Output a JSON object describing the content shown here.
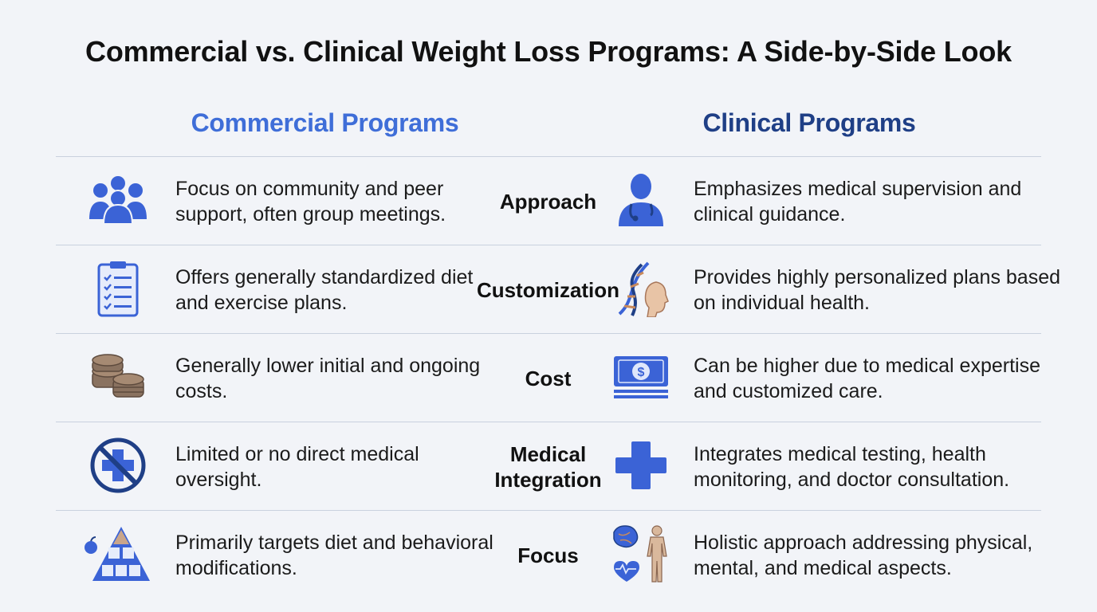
{
  "title": "Commercial vs. Clinical Weight Loss Programs: A Side-by-Side Look",
  "columns": {
    "commercial": "Commercial Programs",
    "clinical": "Clinical Programs"
  },
  "colors": {
    "accent_blue": "#3f6ed8",
    "dark_blue": "#1f3f86",
    "icon_blue": "#3b63d6",
    "background": "#f2f4f8"
  },
  "rows": [
    {
      "category": "Approach",
      "commercial_text": "Focus on community and peer support, often group meetings.",
      "clinical_text": "Emphasizes medical supervision and clinical guidance.",
      "commercial_icon": "group-icon",
      "clinical_icon": "doctor-icon"
    },
    {
      "category": "Customization",
      "commercial_text": "Offers generally standardized diet and exercise plans.",
      "clinical_text": "Provides highly personalized plans based on individual health.",
      "commercial_icon": "checklist-clipboard-icon",
      "clinical_icon": "dna-profile-icon"
    },
    {
      "category": "Cost",
      "commercial_text": "Generally lower initial and ongoing costs.",
      "clinical_text": "Can be higher due to medical expertise and customized care.",
      "commercial_icon": "coins-icon",
      "clinical_icon": "dollar-bills-icon"
    },
    {
      "category": "Medical Integration",
      "commercial_text": "Limited or no direct medical oversight.",
      "clinical_text": "Integrates medical testing, health monitoring, and doctor consultation.",
      "commercial_icon": "no-medical-icon",
      "clinical_icon": "medical-cross-icon"
    },
    {
      "category": "Focus",
      "commercial_text": "Primarily targets diet and behavioral modifications.",
      "clinical_text": "Holistic approach addressing physical, mental, and medical aspects.",
      "commercial_icon": "food-pyramid-icon",
      "clinical_icon": "holistic-body-icon"
    }
  ]
}
